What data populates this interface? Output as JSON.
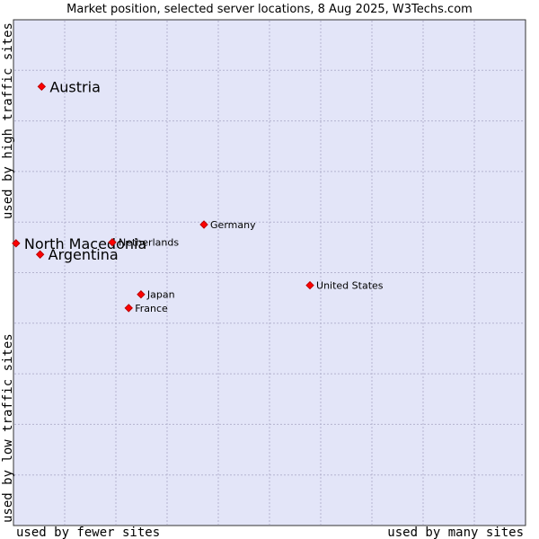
{
  "chart_data": {
    "type": "scatter",
    "title": "Market position, selected server locations, 8 Aug 2025, W3Techs.com",
    "xlabel_left": "used by fewer sites",
    "xlabel_right": "used by many sites",
    "ylabel_bottom": "used by low traffic sites",
    "ylabel_top": "used by high traffic sites",
    "xlim": [
      0,
      100
    ],
    "ylim": [
      0,
      100
    ],
    "grid": true,
    "colors": {
      "plot_background": "#e3e5f8",
      "grid": "#b4b4cf",
      "border": "#333333",
      "marker": "#ff0000",
      "marker_stroke": "#bb0000"
    },
    "points": [
      {
        "label": "Austria",
        "x": 5.5,
        "y": 86.8,
        "emphasis": true
      },
      {
        "label": "North Macedonia",
        "x": 0.5,
        "y": 55.8,
        "emphasis": true
      },
      {
        "label": "Argentina",
        "x": 5.2,
        "y": 53.6,
        "emphasis": true
      },
      {
        "label": "Netherlands",
        "x": 19.3,
        "y": 56.0,
        "emphasis": false
      },
      {
        "label": "Germany",
        "x": 37.2,
        "y": 59.5,
        "emphasis": false
      },
      {
        "label": "United States",
        "x": 57.9,
        "y": 47.5,
        "emphasis": false
      },
      {
        "label": "Japan",
        "x": 24.9,
        "y": 45.7,
        "emphasis": false
      },
      {
        "label": "France",
        "x": 22.5,
        "y": 43.0,
        "emphasis": false
      }
    ]
  }
}
